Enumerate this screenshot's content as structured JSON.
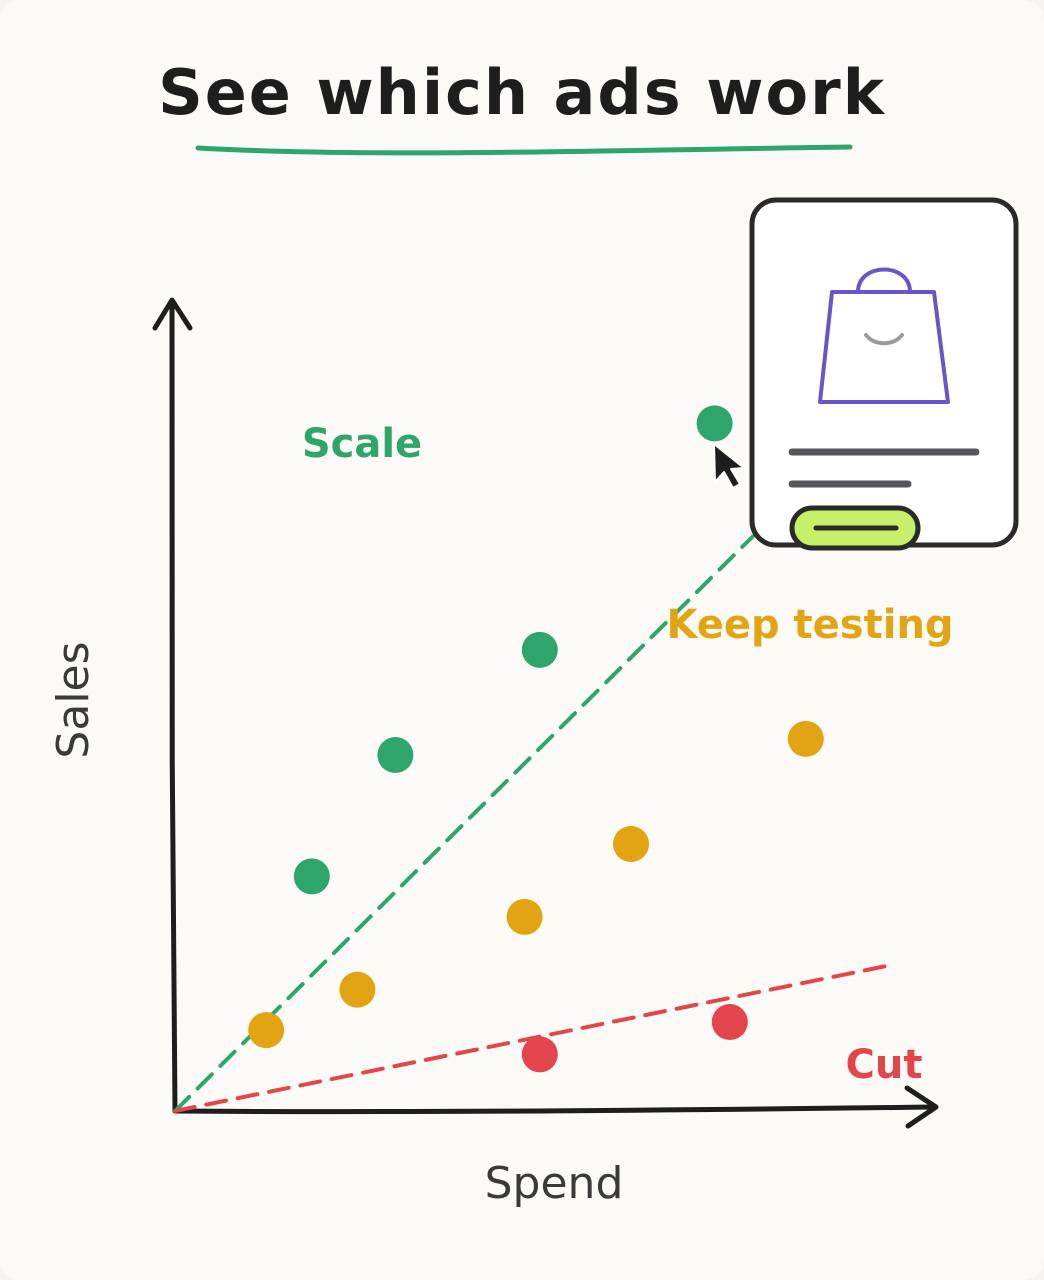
{
  "title": "See which ads work",
  "colors": {
    "scale": "#2ea56b",
    "test": "#e2a412",
    "cut": "#e2454b",
    "ink": "#1e1e1e",
    "underline": "#2ea56b",
    "bag": "#6a55c8",
    "button": "#c6ef6a"
  },
  "chart_data": {
    "type": "scatter",
    "xlabel": "Spend",
    "ylabel": "Sales",
    "xlim": [
      0,
      10
    ],
    "ylim": [
      0,
      10
    ],
    "grid": false,
    "zones": [
      {
        "id": "scale",
        "label": "Scale",
        "color": "#2ea56b"
      },
      {
        "id": "test",
        "label": "Keep testing",
        "color": "#e2a412"
      },
      {
        "id": "cut",
        "label": "Cut",
        "color": "#e2454b"
      }
    ],
    "reference_lines": [
      {
        "id": "scale-threshold",
        "color": "#2ea56b",
        "from": [
          0,
          0
        ],
        "to": [
          7.6,
          7.1
        ]
      },
      {
        "id": "cut-threshold",
        "color": "#e2454b",
        "from": [
          0,
          0
        ],
        "to": [
          9.4,
          1.8
        ]
      }
    ],
    "series": [
      {
        "zone": "scale",
        "points": [
          [
            1.8,
            2.9
          ],
          [
            2.9,
            4.4
          ],
          [
            4.8,
            5.7
          ],
          [
            7.1,
            8.5
          ]
        ]
      },
      {
        "zone": "test",
        "points": [
          [
            1.2,
            1.0
          ],
          [
            2.4,
            1.5
          ],
          [
            4.6,
            2.4
          ],
          [
            6.0,
            3.3
          ],
          [
            8.3,
            4.6
          ]
        ]
      },
      {
        "zone": "cut",
        "points": [
          [
            4.8,
            0.7
          ],
          [
            7.3,
            1.1
          ]
        ]
      }
    ]
  }
}
